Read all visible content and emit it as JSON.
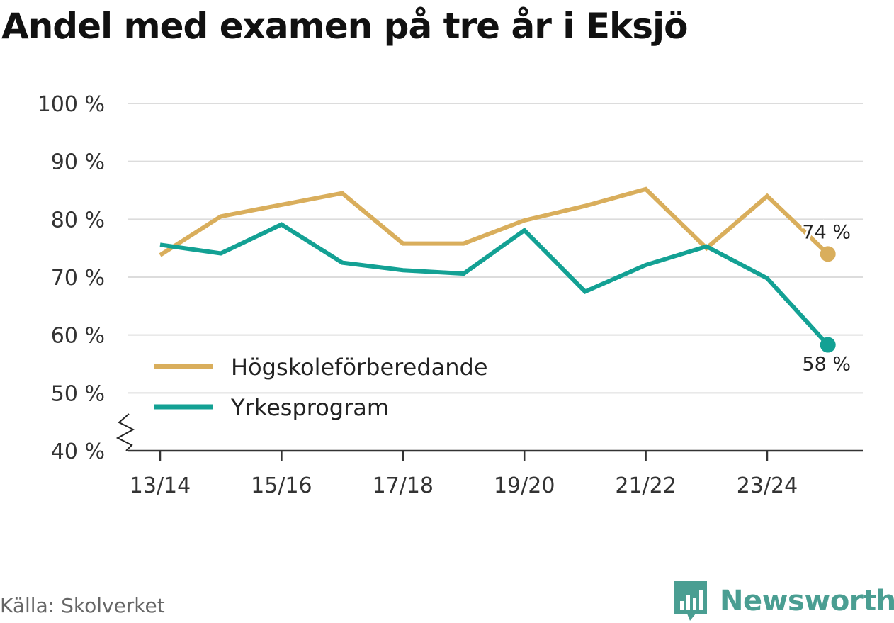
{
  "title": "Andel med examen på tre år i Eksjö",
  "source": "Källa: Skolverket",
  "brand": {
    "name": "Newsworthy",
    "icon": "newsworthy-logo-icon",
    "color": "#4a9e92"
  },
  "chart_data": {
    "type": "line",
    "title": "Andel med examen på tre år i Eksjö",
    "x": [
      "13/14",
      "14/15",
      "15/16",
      "16/17",
      "17/18",
      "18/19",
      "19/20",
      "20/21",
      "21/22",
      "22/23",
      "23/24",
      "24/25"
    ],
    "x_tick_labels": [
      "13/14",
      "15/16",
      "17/18",
      "19/20",
      "21/22",
      "23/24"
    ],
    "y_ticks": [
      40,
      50,
      60,
      70,
      80,
      90,
      100
    ],
    "y_tick_labels": [
      "40 %",
      "50 %",
      "60 %",
      "70 %",
      "80 %",
      "90 %",
      "100 %"
    ],
    "ylim": [
      40,
      100
    ],
    "y_axis_break": true,
    "grid": true,
    "legend_position": "bottom-left",
    "series": [
      {
        "name": "Högskoleförberedande",
        "color": "#d9ae5c",
        "values": [
          73.8,
          80.5,
          82.5,
          84.5,
          75.8,
          75.8,
          79.8,
          82.3,
          85.2,
          75.0,
          84.0,
          74.0
        ],
        "end_label": "74 %"
      },
      {
        "name": "Yrkesprogram",
        "color": "#13a194",
        "values": [
          75.6,
          74.1,
          79.1,
          72.5,
          71.2,
          70.6,
          78.1,
          67.5,
          72.1,
          75.3,
          69.8,
          58.3
        ],
        "end_label": "58 %"
      }
    ]
  }
}
